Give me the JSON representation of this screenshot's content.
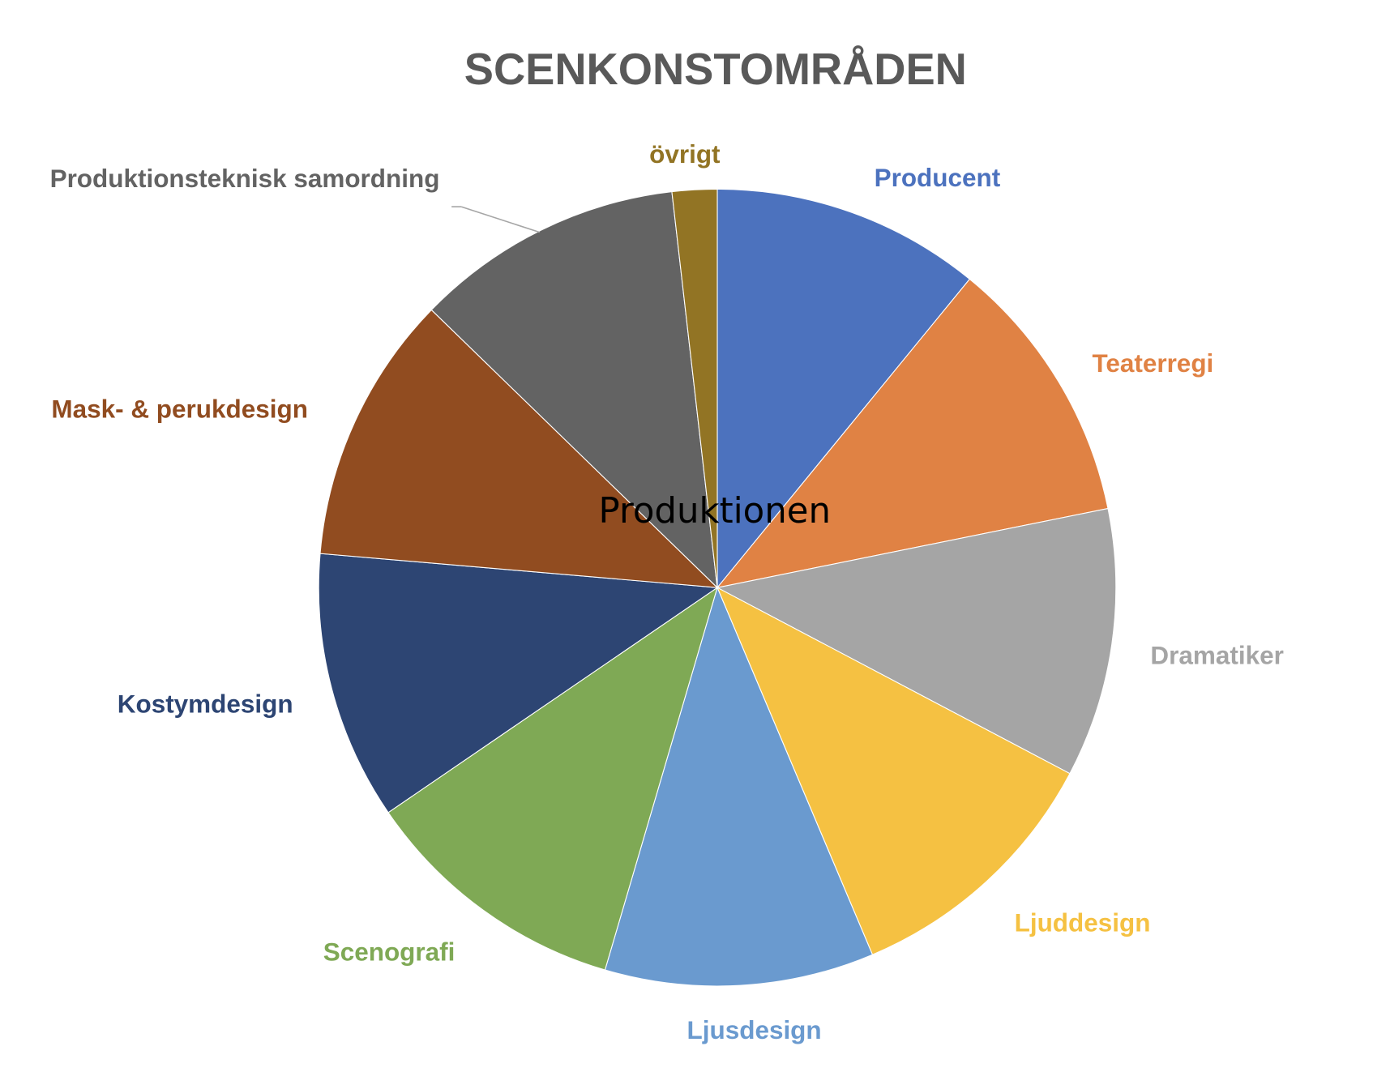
{
  "chart_data": {
    "type": "pie",
    "title": "SCENKONSTOMRÅDEN",
    "annotation": "Produktionen",
    "start_angle_deg": 0,
    "direction": "clockwise",
    "slices": [
      {
        "label": "Producent",
        "value": 6,
        "color": "#4C72BE"
      },
      {
        "label": "Teaterregi",
        "value": 6,
        "color": "#E08244"
      },
      {
        "label": "Dramatiker",
        "value": 6,
        "color": "#A5A5A5"
      },
      {
        "label": "Ljuddesign",
        "value": 6,
        "color": "#F5C142"
      },
      {
        "label": "Ljusdesign",
        "value": 6,
        "color": "#6A9ACF"
      },
      {
        "label": "Scenografi",
        "value": 6,
        "color": "#7FA955"
      },
      {
        "label": "Kostymdesign",
        "value": 6,
        "color": "#2D4573"
      },
      {
        "label": "Mask- & perukdesign",
        "value": 6,
        "color": "#914C20"
      },
      {
        "label": "Produktionsteknisk samordning",
        "value": 6,
        "color": "#636363"
      },
      {
        "label": "övrigt",
        "value": 1,
        "color": "#927424"
      }
    ],
    "legend": "none",
    "data_labels": "category names outside slices"
  }
}
